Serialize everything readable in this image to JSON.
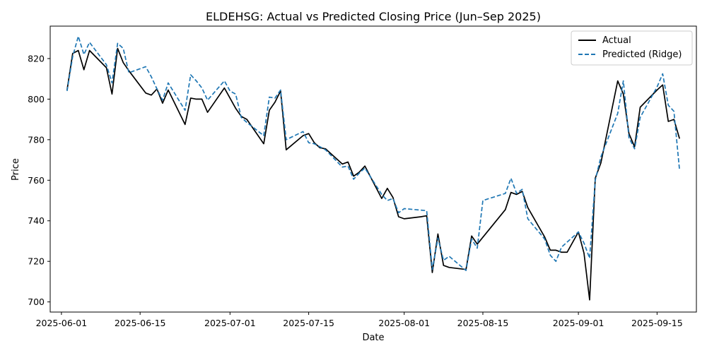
{
  "chart_data": {
    "type": "line",
    "title": "ELDEHSG: Actual vs Predicted Closing Price (Jun–Sep 2025)",
    "xlabel": "Date",
    "ylabel": "Price",
    "xlim": [
      "2025-05-30",
      "2025-09-22"
    ],
    "ylim": [
      695,
      836
    ],
    "x_ticks": [
      "2025-06-01",
      "2025-06-15",
      "2025-07-01",
      "2025-07-15",
      "2025-08-01",
      "2025-08-15",
      "2025-09-01",
      "2025-09-15"
    ],
    "y_ticks": [
      700,
      720,
      740,
      760,
      780,
      800,
      820
    ],
    "grid": false,
    "legend_position": "top-right",
    "series": [
      {
        "name": "Actual",
        "color": "#000000",
        "style": "solid",
        "points": [
          [
            "2025-06-02",
            804.5
          ],
          [
            "2025-06-03",
            822.5
          ],
          [
            "2025-06-04",
            824.0
          ],
          [
            "2025-06-05",
            814.5
          ],
          [
            "2025-06-06",
            824.0
          ],
          [
            "2025-06-09",
            815.5
          ],
          [
            "2025-06-10",
            802.5
          ],
          [
            "2025-06-11",
            825.0
          ],
          [
            "2025-06-12",
            818.0
          ],
          [
            "2025-06-13",
            814.0
          ],
          [
            "2025-06-16",
            803.0
          ],
          [
            "2025-06-17",
            802.0
          ],
          [
            "2025-06-18",
            805.0
          ],
          [
            "2025-06-19",
            798.0
          ],
          [
            "2025-06-20",
            804.5
          ],
          [
            "2025-06-23",
            787.5
          ],
          [
            "2025-06-24",
            800.5
          ],
          [
            "2025-06-25",
            800.0
          ],
          [
            "2025-06-26",
            800.0
          ],
          [
            "2025-06-27",
            793.5
          ],
          [
            "2025-06-30",
            805.5
          ],
          [
            "2025-07-02",
            795.5
          ],
          [
            "2025-07-03",
            791.5
          ],
          [
            "2025-07-04",
            790.0
          ],
          [
            "2025-07-07",
            778.0
          ],
          [
            "2025-07-08",
            794.5
          ],
          [
            "2025-07-09",
            798.5
          ],
          [
            "2025-07-10",
            804.0
          ],
          [
            "2025-07-11",
            775.0
          ],
          [
            "2025-07-14",
            782.0
          ],
          [
            "2025-07-15",
            783.0
          ],
          [
            "2025-07-16",
            778.5
          ],
          [
            "2025-07-17",
            776.0
          ],
          [
            "2025-07-18",
            775.5
          ],
          [
            "2025-07-21",
            768.0
          ],
          [
            "2025-07-22",
            769.0
          ],
          [
            "2025-07-23",
            762.0
          ],
          [
            "2025-07-24",
            764.0
          ],
          [
            "2025-07-25",
            767.0
          ],
          [
            "2025-07-28",
            751.0
          ],
          [
            "2025-07-29",
            756.0
          ],
          [
            "2025-07-30",
            751.5
          ],
          [
            "2025-07-31",
            742.0
          ],
          [
            "2025-08-01",
            741.0
          ],
          [
            "2025-08-04",
            742.0
          ],
          [
            "2025-08-05",
            742.5
          ],
          [
            "2025-08-06",
            714.5
          ],
          [
            "2025-08-07",
            733.5
          ],
          [
            "2025-08-08",
            718.0
          ],
          [
            "2025-08-09",
            717.0
          ],
          [
            "2025-08-12",
            716.0
          ],
          [
            "2025-08-13",
            732.5
          ],
          [
            "2025-08-14",
            728.5
          ],
          [
            "2025-08-19",
            745.5
          ],
          [
            "2025-08-20",
            754.0
          ],
          [
            "2025-08-21",
            753.0
          ],
          [
            "2025-08-22",
            754.5
          ],
          [
            "2025-08-23",
            746.5
          ],
          [
            "2025-08-26",
            732.0
          ],
          [
            "2025-08-27",
            725.5
          ],
          [
            "2025-08-28",
            725.5
          ],
          [
            "2025-08-29",
            724.5
          ],
          [
            "2025-08-30",
            724.5
          ],
          [
            "2025-09-01",
            734.5
          ],
          [
            "2025-09-02",
            724.0
          ],
          [
            "2025-09-03",
            701.0
          ],
          [
            "2025-09-04",
            761.0
          ],
          [
            "2025-09-05",
            768.5
          ],
          [
            "2025-09-08",
            809.0
          ],
          [
            "2025-09-09",
            802.5
          ],
          [
            "2025-09-10",
            783.0
          ],
          [
            "2025-09-11",
            776.5
          ],
          [
            "2025-09-12",
            796.0
          ],
          [
            "2025-09-15",
            804.5
          ],
          [
            "2025-09-16",
            807.0
          ],
          [
            "2025-09-17",
            789.0
          ],
          [
            "2025-09-18",
            790.0
          ],
          [
            "2025-09-19",
            780.5
          ]
        ]
      },
      {
        "name": "Predicted (Ridge)",
        "color": "#1f77b4",
        "style": "dashed",
        "points": [
          [
            "2025-06-02",
            804.0
          ],
          [
            "2025-06-03",
            821.0
          ],
          [
            "2025-06-04",
            831.0
          ],
          [
            "2025-06-05",
            822.0
          ],
          [
            "2025-06-06",
            828.0
          ],
          [
            "2025-06-09",
            817.0
          ],
          [
            "2025-06-10",
            808.0
          ],
          [
            "2025-06-11",
            827.5
          ],
          [
            "2025-06-12",
            825.0
          ],
          [
            "2025-06-13",
            813.0
          ],
          [
            "2025-06-16",
            816.0
          ],
          [
            "2025-06-17",
            811.0
          ],
          [
            "2025-06-18",
            805.0
          ],
          [
            "2025-06-19",
            799.5
          ],
          [
            "2025-06-20",
            808.0
          ],
          [
            "2025-06-23",
            794.5
          ],
          [
            "2025-06-24",
            812.0
          ],
          [
            "2025-06-25",
            809.0
          ],
          [
            "2025-06-26",
            805.5
          ],
          [
            "2025-06-27",
            799.5
          ],
          [
            "2025-06-30",
            809.0
          ],
          [
            "2025-07-01",
            804.0
          ],
          [
            "2025-07-02",
            802.5
          ],
          [
            "2025-07-03",
            791.0
          ],
          [
            "2025-07-04",
            788.5
          ],
          [
            "2025-07-07",
            782.0
          ],
          [
            "2025-07-08",
            801.0
          ],
          [
            "2025-07-09",
            800.5
          ],
          [
            "2025-07-10",
            804.5
          ],
          [
            "2025-07-11",
            780.0
          ],
          [
            "2025-07-14",
            784.0
          ],
          [
            "2025-07-15",
            778.5
          ],
          [
            "2025-07-16",
            778.0
          ],
          [
            "2025-07-17",
            776.5
          ],
          [
            "2025-07-18",
            775.0
          ],
          [
            "2025-07-21",
            766.5
          ],
          [
            "2025-07-22",
            767.0
          ],
          [
            "2025-07-23",
            760.5
          ],
          [
            "2025-07-24",
            763.5
          ],
          [
            "2025-07-25",
            766.0
          ],
          [
            "2025-07-28",
            753.0
          ],
          [
            "2025-07-29",
            750.0
          ],
          [
            "2025-07-30",
            751.0
          ],
          [
            "2025-07-31",
            744.0
          ],
          [
            "2025-08-01",
            746.0
          ],
          [
            "2025-08-05",
            745.0
          ],
          [
            "2025-08-06",
            716.0
          ],
          [
            "2025-08-07",
            731.5
          ],
          [
            "2025-08-08",
            720.5
          ],
          [
            "2025-08-09",
            722.5
          ],
          [
            "2025-08-12",
            715.5
          ],
          [
            "2025-08-13",
            731.0
          ],
          [
            "2025-08-14",
            726.5
          ],
          [
            "2025-08-15",
            750.0
          ],
          [
            "2025-08-19",
            753.5
          ],
          [
            "2025-08-20",
            761.0
          ],
          [
            "2025-08-21",
            753.5
          ],
          [
            "2025-08-22",
            755.5
          ],
          [
            "2025-08-23",
            741.0
          ],
          [
            "2025-08-26",
            731.0
          ],
          [
            "2025-08-27",
            723.0
          ],
          [
            "2025-08-28",
            720.0
          ],
          [
            "2025-08-29",
            727.0
          ],
          [
            "2025-09-01",
            734.5
          ],
          [
            "2025-09-02",
            729.0
          ],
          [
            "2025-09-03",
            721.5
          ],
          [
            "2025-09-04",
            760.0
          ],
          [
            "2025-09-05",
            771.5
          ],
          [
            "2025-09-08",
            793.0
          ],
          [
            "2025-09-09",
            809.0
          ],
          [
            "2025-09-10",
            781.0
          ],
          [
            "2025-09-11",
            775.5
          ],
          [
            "2025-09-12",
            791.0
          ],
          [
            "2025-09-15",
            806.0
          ],
          [
            "2025-09-16",
            812.5
          ],
          [
            "2025-09-17",
            797.0
          ],
          [
            "2025-09-18",
            794.0
          ],
          [
            "2025-09-19",
            765.0
          ]
        ]
      }
    ]
  }
}
